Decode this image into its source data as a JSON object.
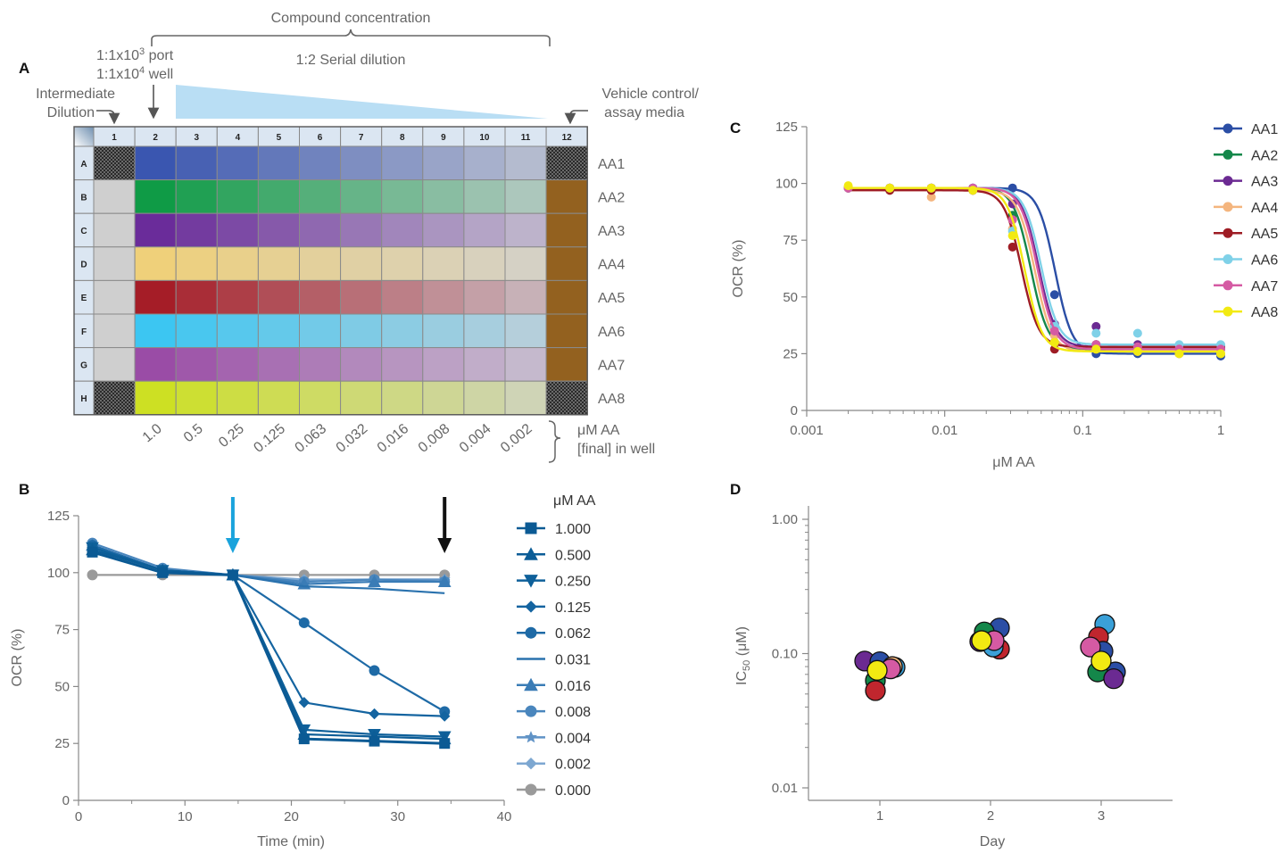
{
  "panel_letters": {
    "a": "A",
    "b": "B",
    "c": "C",
    "d": "D"
  },
  "plate": {
    "compound_concentration": "Compound concentration",
    "serial_dilution": "1:2 Serial dilution",
    "port_line_pre": "1:1x10",
    "port_sup": "3",
    "port_line_post": " port",
    "well_line_pre": "1:1x10",
    "well_sup": "4",
    "well_line_post": " well",
    "intermediate_line1": "Intermediate",
    "intermediate_line2": "Dilution",
    "vehicle_line1": "Vehicle control/",
    "vehicle_line2": "assay media",
    "col_headers": [
      "1",
      "2",
      "3",
      "4",
      "5",
      "6",
      "7",
      "8",
      "9",
      "10",
      "11",
      "12"
    ],
    "row_headers": [
      "A",
      "B",
      "C",
      "D",
      "E",
      "F",
      "G",
      "H"
    ],
    "row_labels": [
      "AA1",
      "AA2",
      "AA3",
      "AA4",
      "AA5",
      "AA6",
      "AA7",
      "AA8"
    ],
    "row_colors": [
      "#3a56b0",
      "#0f9b46",
      "#6a2c9a",
      "#efd07a",
      "#a51d27",
      "#3cc6f2",
      "#9a4ca6",
      "#cde023"
    ],
    "concentrations": [
      "1.0",
      "0.5",
      "0.25",
      "0.125",
      "0.063",
      "0.032",
      "0.016",
      "0.008",
      "0.004",
      "0.002"
    ],
    "unit_line1": "μM AA",
    "unit_line2": "[final] in well",
    "edge_well_color": "#cfcfcf",
    "vehicle_well_color": "#93611f"
  },
  "chart_data": [
    {
      "panel": "B",
      "type": "line",
      "xlabel": "Time (min)",
      "ylabel": "OCR (%)",
      "xlim": [
        0,
        40
      ],
      "ylim": [
        0,
        125
      ],
      "xticks": [
        "0",
        "10",
        "20",
        "30",
        "40"
      ],
      "yticks": [
        "0",
        "25",
        "50",
        "75",
        "100",
        "125"
      ],
      "legend_title": "μM AA",
      "x": [
        1.3,
        7.9,
        14.5,
        21.2,
        27.8,
        34.4
      ],
      "injection_arrows": [
        {
          "x": 14.5,
          "color": "#1aa3dc"
        },
        {
          "x": 34.4,
          "color": "#111111"
        }
      ],
      "series": [
        {
          "name": "1.000",
          "marker": "square",
          "color": "#0b5a94",
          "values": [
            109,
            100,
            99,
            27,
            26,
            25
          ]
        },
        {
          "name": "0.500",
          "marker": "triangle-up",
          "color": "#0c5d97",
          "values": [
            110,
            101,
            99,
            29,
            28,
            27
          ]
        },
        {
          "name": "0.250",
          "marker": "triangle-down",
          "color": "#0e609a",
          "values": [
            111,
            101,
            99,
            31,
            29,
            28
          ]
        },
        {
          "name": "0.125",
          "marker": "diamond",
          "color": "#1464a0",
          "values": [
            111,
            101,
            99,
            43,
            38,
            37
          ]
        },
        {
          "name": "0.062",
          "marker": "circle",
          "color": "#1e6aa6",
          "values": [
            112,
            101,
            99,
            78,
            57,
            39
          ]
        },
        {
          "name": "0.031",
          "marker": "none",
          "color": "#2a72ae",
          "values": [
            112,
            101,
            99,
            94,
            93,
            91
          ]
        },
        {
          "name": "0.016",
          "marker": "triangle-up",
          "color": "#3a7cb6",
          "values": [
            112,
            101,
            99,
            95,
            96,
            96
          ]
        },
        {
          "name": "0.008",
          "marker": "circle",
          "color": "#4a86bd",
          "values": [
            113,
            102,
            99,
            96,
            97,
            96
          ]
        },
        {
          "name": "0.004",
          "marker": "star",
          "color": "#6093c6",
          "values": [
            112,
            101,
            99,
            96,
            97,
            97
          ]
        },
        {
          "name": "0.002",
          "marker": "diamond",
          "color": "#7da7d1",
          "values": [
            112,
            101,
            99,
            97,
            97,
            97
          ]
        },
        {
          "name": "0.000",
          "marker": "circle",
          "color": "#9a9a9a",
          "values": [
            99,
            99,
            99,
            99,
            99,
            99
          ]
        }
      ]
    },
    {
      "panel": "C",
      "type": "scatter",
      "xlabel": "μM AA",
      "ylabel": "OCR (%)",
      "xscale": "log",
      "xlim": [
        0.001,
        1
      ],
      "ylim": [
        0,
        125
      ],
      "xticks": [
        "0.001",
        "0.01",
        "0.1",
        "1"
      ],
      "yticks": [
        "0",
        "25",
        "50",
        "75",
        "100",
        "125"
      ],
      "x": [
        0.002,
        0.004,
        0.008,
        0.016,
        0.031,
        0.0625,
        0.125,
        0.25,
        0.5,
        1.0
      ],
      "series": [
        {
          "name": "AA1",
          "color": "#2b4ea5",
          "values": [
            98,
            98,
            98,
            98,
            98,
            51,
            25,
            25,
            25,
            24
          ],
          "ic50": 0.063,
          "top": 98,
          "bottom": 25
        },
        {
          "name": "AA2",
          "color": "#14874a",
          "values": [
            98,
            97,
            97,
            97,
            86,
            30,
            29,
            28,
            27,
            27
          ],
          "ic50": 0.042,
          "top": 98,
          "bottom": 27
        },
        {
          "name": "AA3",
          "color": "#6b2a92",
          "values": [
            98,
            98,
            98,
            98,
            91,
            38,
            37,
            29,
            28,
            28
          ],
          "ic50": 0.048,
          "top": 98,
          "bottom": 28
        },
        {
          "name": "AA4",
          "color": "#f4b57e",
          "values": [
            98,
            97,
            94,
            97,
            80,
            33,
            27,
            26,
            25,
            25
          ],
          "ic50": 0.045,
          "top": 97,
          "bottom": 26
        },
        {
          "name": "AA5",
          "color": "#9e1c24",
          "values": [
            98,
            97,
            97,
            97,
            72,
            27,
            29,
            28,
            28,
            28
          ],
          "ic50": 0.036,
          "top": 97,
          "bottom": 28
        },
        {
          "name": "AA6",
          "color": "#7fd1e8",
          "values": [
            98,
            98,
            98,
            98,
            79,
            37,
            34,
            34,
            29,
            29
          ],
          "ic50": 0.05,
          "top": 98,
          "bottom": 29
        },
        {
          "name": "AA7",
          "color": "#d55aa3",
          "values": [
            98,
            98,
            98,
            98,
            84,
            35,
            29,
            28,
            27,
            27
          ],
          "ic50": 0.047,
          "top": 98,
          "bottom": 27
        },
        {
          "name": "AA8",
          "color": "#f2ea12",
          "values": [
            99,
            98,
            98,
            97,
            77,
            30,
            27,
            26,
            25,
            25
          ],
          "ic50": 0.038,
          "top": 98,
          "bottom": 26
        }
      ]
    },
    {
      "panel": "D",
      "type": "scatter",
      "xlabel": "Day",
      "ylabel_main": "IC",
      "ylabel_sub": "50",
      "ylabel_unit": " (μM)",
      "yscale": "log",
      "ylim": [
        0.01,
        1.0
      ],
      "yticks": [
        "0.01",
        "0.10",
        "1.00"
      ],
      "categories": [
        "1",
        "2",
        "3"
      ],
      "points": [
        {
          "day": 1,
          "offset": -0.17,
          "value": 0.088,
          "color": "#6b2a92"
        },
        {
          "day": 1,
          "offset": 0.0,
          "value": 0.087,
          "color": "#2b4ea5"
        },
        {
          "day": 1,
          "offset": 0.17,
          "value": 0.079,
          "color": "#3aa0d8"
        },
        {
          "day": 1,
          "offset": 0.14,
          "value": 0.08,
          "color": "#f4b57e"
        },
        {
          "day": 1,
          "offset": -0.05,
          "value": 0.063,
          "color": "#14874a"
        },
        {
          "day": 1,
          "offset": -0.05,
          "value": 0.053,
          "color": "#c0262e"
        },
        {
          "day": 1,
          "offset": 0.12,
          "value": 0.077,
          "color": "#d55aa3"
        },
        {
          "day": 1,
          "offset": -0.03,
          "value": 0.075,
          "color": "#f2ea12"
        },
        {
          "day": 2,
          "offset": 0.1,
          "value": 0.108,
          "color": "#c0262e"
        },
        {
          "day": 2,
          "offset": 0.1,
          "value": 0.155,
          "color": "#2b4ea5"
        },
        {
          "day": 2,
          "offset": -0.07,
          "value": 0.145,
          "color": "#14874a"
        },
        {
          "day": 2,
          "offset": -0.12,
          "value": 0.123,
          "color": "#6b2a92"
        },
        {
          "day": 2,
          "offset": 0.03,
          "value": 0.112,
          "color": "#3aa0d8"
        },
        {
          "day": 2,
          "offset": 0.04,
          "value": 0.125,
          "color": "#d55aa3"
        },
        {
          "day": 2,
          "offset": -0.1,
          "value": 0.125,
          "color": "#f2ea12"
        },
        {
          "day": 3,
          "offset": 0.04,
          "value": 0.165,
          "color": "#3aa0d8"
        },
        {
          "day": 3,
          "offset": -0.03,
          "value": 0.133,
          "color": "#c0262e"
        },
        {
          "day": 3,
          "offset": 0.02,
          "value": 0.104,
          "color": "#2b4ea5"
        },
        {
          "day": 3,
          "offset": -0.12,
          "value": 0.112,
          "color": "#d55aa3"
        },
        {
          "day": 3,
          "offset": 0.16,
          "value": 0.073,
          "color": "#2b4ea5"
        },
        {
          "day": 3,
          "offset": -0.04,
          "value": 0.073,
          "color": "#14874a"
        },
        {
          "day": 3,
          "offset": 0.14,
          "value": 0.065,
          "color": "#6b2a92"
        },
        {
          "day": 3,
          "offset": 0.0,
          "value": 0.088,
          "color": "#f2ea12"
        }
      ]
    }
  ]
}
